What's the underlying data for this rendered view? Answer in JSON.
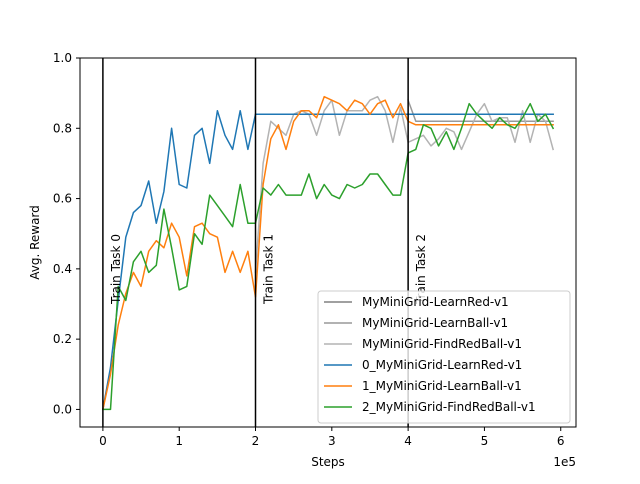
{
  "chart_data": {
    "type": "line",
    "title": "",
    "xlabel": "Steps",
    "ylabel": "Avg. Reward",
    "x_multiplier_label": "1e5",
    "xlim": [
      -0.3,
      6.2
    ],
    "ylim": [
      -0.05,
      1.0
    ],
    "x_ticks": [
      0,
      1,
      2,
      3,
      4,
      5,
      6
    ],
    "x_tick_labels": [
      "0",
      "1",
      "2",
      "3",
      "4",
      "5",
      "6"
    ],
    "y_ticks": [
      0.0,
      0.2,
      0.4,
      0.6,
      0.8,
      1.0
    ],
    "y_tick_labels": [
      "0.0",
      "0.2",
      "0.4",
      "0.6",
      "0.8",
      "1.0"
    ],
    "legend_position": "lower-right",
    "task_boundaries": [
      {
        "x": 0,
        "label": "Train Task 0"
      },
      {
        "x": 2,
        "label": "Train Task 1"
      },
      {
        "x": 4,
        "label": "Train Task 2"
      }
    ],
    "series": [
      {
        "name": "MyMiniGrid-LearnRed-v1",
        "color": "#808080",
        "x": [
          2.0,
          2.1,
          2.2,
          2.3,
          2.4,
          2.5,
          2.6,
          2.7,
          2.8,
          2.9,
          3.0,
          3.1,
          3.2,
          3.3,
          3.4,
          3.5,
          3.6,
          3.7,
          3.8,
          3.9,
          4.0,
          4.1,
          4.2,
          4.3,
          4.4,
          4.5,
          4.6,
          4.7,
          4.8,
          4.9,
          5.0,
          5.1,
          5.2,
          5.3,
          5.4,
          5.5,
          5.6,
          5.7,
          5.8,
          5.9
        ],
        "y": [
          0.84,
          0.84,
          0.84,
          0.84,
          0.84,
          0.84,
          0.84,
          0.84,
          0.84,
          0.84,
          0.84,
          0.84,
          0.84,
          0.84,
          0.84,
          0.84,
          0.84,
          0.84,
          0.84,
          0.84,
          0.84,
          0.84,
          0.84,
          0.84,
          0.84,
          0.84,
          0.84,
          0.84,
          0.84,
          0.84,
          0.84,
          0.84,
          0.84,
          0.84,
          0.84,
          0.84,
          0.84,
          0.84,
          0.84,
          0.84
        ]
      },
      {
        "name": "MyMiniGrid-LearnBall-v1",
        "color": "#999999",
        "x": [
          4.0,
          4.1,
          4.2,
          4.3,
          4.4,
          4.5,
          4.6,
          4.7,
          4.8,
          4.9,
          5.0,
          5.1,
          5.2,
          5.3,
          5.4,
          5.5,
          5.6,
          5.7,
          5.8,
          5.9
        ],
        "y": [
          0.88,
          0.82,
          0.82,
          0.82,
          0.82,
          0.82,
          0.82,
          0.82,
          0.82,
          0.82,
          0.82,
          0.82,
          0.82,
          0.82,
          0.82,
          0.82,
          0.82,
          0.82,
          0.82,
          0.82
        ]
      },
      {
        "name": "MyMiniGrid-FindRedBall-v1",
        "color": "#b3b3b3",
        "x": [
          2.0,
          2.1,
          2.2,
          2.3,
          2.4,
          2.5,
          2.6,
          2.7,
          2.8,
          2.9,
          3.0,
          3.1,
          3.2,
          3.3,
          3.4,
          3.5,
          3.6,
          3.7,
          3.8,
          3.9,
          4.0,
          4.1,
          4.2,
          4.3,
          4.4,
          4.5,
          4.6,
          4.7,
          4.8,
          4.9,
          5.0,
          5.1,
          5.2,
          5.3,
          5.4,
          5.5,
          5.6,
          5.7,
          5.8,
          5.9
        ],
        "y": [
          0.39,
          0.7,
          0.82,
          0.8,
          0.78,
          0.84,
          0.85,
          0.84,
          0.78,
          0.85,
          0.88,
          0.78,
          0.85,
          0.85,
          0.85,
          0.88,
          0.89,
          0.85,
          0.76,
          0.86,
          0.76,
          0.77,
          0.78,
          0.75,
          0.77,
          0.8,
          0.79,
          0.74,
          0.79,
          0.84,
          0.87,
          0.82,
          0.83,
          0.83,
          0.76,
          0.85,
          0.76,
          0.84,
          0.82,
          0.74
        ]
      },
      {
        "name": "0_MyMiniGrid-LearnRed-v1",
        "color": "#1f77b4",
        "x": [
          0.0,
          0.1,
          0.2,
          0.3,
          0.4,
          0.5,
          0.6,
          0.7,
          0.8,
          0.9,
          1.0,
          1.1,
          1.2,
          1.3,
          1.4,
          1.5,
          1.6,
          1.7,
          1.8,
          1.9,
          2.0,
          2.1,
          2.2,
          2.3,
          2.4,
          2.5,
          2.6,
          2.7,
          2.8,
          2.9,
          3.0,
          3.1,
          3.2,
          3.3,
          3.4,
          3.5,
          3.6,
          3.7,
          3.8,
          3.9,
          4.0,
          4.1,
          4.2,
          4.3,
          4.4,
          4.5,
          4.6,
          4.7,
          4.8,
          4.9,
          5.0,
          5.1,
          5.2,
          5.3,
          5.4,
          5.5,
          5.6,
          5.7,
          5.8,
          5.9
        ],
        "y": [
          0.0,
          0.12,
          0.31,
          0.49,
          0.56,
          0.58,
          0.65,
          0.53,
          0.62,
          0.8,
          0.64,
          0.63,
          0.78,
          0.8,
          0.7,
          0.85,
          0.78,
          0.74,
          0.85,
          0.74,
          0.84,
          0.84,
          0.84,
          0.84,
          0.84,
          0.84,
          0.84,
          0.84,
          0.84,
          0.84,
          0.84,
          0.84,
          0.84,
          0.84,
          0.84,
          0.84,
          0.84,
          0.84,
          0.84,
          0.84,
          0.84,
          0.84,
          0.84,
          0.84,
          0.84,
          0.84,
          0.84,
          0.84,
          0.84,
          0.84,
          0.84,
          0.84,
          0.84,
          0.84,
          0.84,
          0.84,
          0.84,
          0.84,
          0.84,
          0.84
        ]
      },
      {
        "name": "1_MyMiniGrid-LearnBall-v1",
        "color": "#ff7f0e",
        "x": [
          0.0,
          0.1,
          0.2,
          0.3,
          0.4,
          0.5,
          0.6,
          0.7,
          0.8,
          0.9,
          1.0,
          1.1,
          1.2,
          1.3,
          1.4,
          1.5,
          1.6,
          1.7,
          1.8,
          1.9,
          2.0,
          2.1,
          2.2,
          2.3,
          2.4,
          2.5,
          2.6,
          2.7,
          2.8,
          2.9,
          3.0,
          3.1,
          3.2,
          3.3,
          3.4,
          3.5,
          3.6,
          3.7,
          3.8,
          3.9,
          4.0,
          4.1,
          4.2,
          4.3,
          4.4,
          4.5,
          4.6,
          4.7,
          4.8,
          4.9,
          5.0,
          5.1,
          5.2,
          5.3,
          5.4,
          5.5,
          5.6,
          5.7,
          5.8,
          5.9
        ],
        "y": [
          0.0,
          0.1,
          0.24,
          0.33,
          0.39,
          0.35,
          0.45,
          0.48,
          0.46,
          0.53,
          0.49,
          0.38,
          0.52,
          0.53,
          0.5,
          0.49,
          0.39,
          0.45,
          0.39,
          0.45,
          0.32,
          0.64,
          0.77,
          0.81,
          0.74,
          0.82,
          0.85,
          0.85,
          0.83,
          0.89,
          0.88,
          0.87,
          0.85,
          0.88,
          0.87,
          0.84,
          0.87,
          0.88,
          0.83,
          0.87,
          0.82,
          0.81,
          0.81,
          0.81,
          0.81,
          0.81,
          0.81,
          0.81,
          0.81,
          0.81,
          0.81,
          0.81,
          0.81,
          0.81,
          0.81,
          0.81,
          0.81,
          0.81,
          0.81,
          0.81
        ]
      },
      {
        "name": "2_MyMiniGrid-FindRedBall-v1",
        "color": "#2ca02c",
        "x": [
          0.0,
          0.1,
          0.2,
          0.3,
          0.4,
          0.5,
          0.6,
          0.7,
          0.8,
          0.9,
          1.0,
          1.1,
          1.2,
          1.3,
          1.4,
          1.5,
          1.6,
          1.7,
          1.8,
          1.9,
          2.0,
          2.1,
          2.2,
          2.3,
          2.4,
          2.5,
          2.6,
          2.7,
          2.8,
          2.9,
          3.0,
          3.1,
          3.2,
          3.3,
          3.4,
          3.5,
          3.6,
          3.7,
          3.8,
          3.9,
          4.0,
          4.1,
          4.2,
          4.3,
          4.4,
          4.5,
          4.6,
          4.7,
          4.8,
          4.9,
          5.0,
          5.1,
          5.2,
          5.3,
          5.4,
          5.5,
          5.6,
          5.7,
          5.8,
          5.9
        ],
        "y": [
          0.0,
          0.0,
          0.35,
          0.31,
          0.42,
          0.45,
          0.39,
          0.41,
          0.57,
          0.46,
          0.34,
          0.35,
          0.5,
          0.47,
          0.61,
          0.58,
          0.55,
          0.52,
          0.64,
          0.53,
          0.53,
          0.63,
          0.61,
          0.64,
          0.61,
          0.61,
          0.61,
          0.67,
          0.6,
          0.64,
          0.61,
          0.6,
          0.64,
          0.63,
          0.64,
          0.67,
          0.67,
          0.64,
          0.61,
          0.61,
          0.73,
          0.74,
          0.81,
          0.8,
          0.75,
          0.79,
          0.74,
          0.8,
          0.87,
          0.84,
          0.82,
          0.8,
          0.83,
          0.81,
          0.8,
          0.83,
          0.87,
          0.82,
          0.84,
          0.8
        ]
      }
    ]
  }
}
